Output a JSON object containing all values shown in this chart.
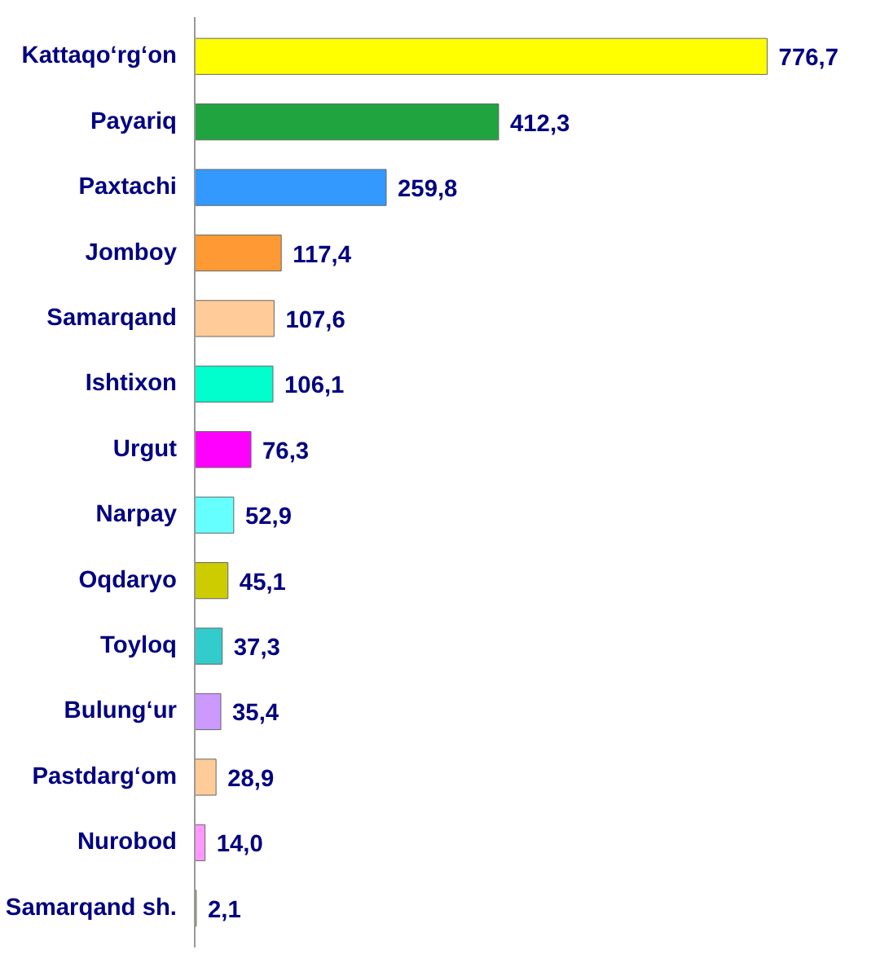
{
  "chart_data": {
    "type": "bar",
    "orientation": "horizontal",
    "categories": [
      "Kattaqo‘rg‘on",
      "Payariq",
      "Paxtachi",
      "Jomboy",
      "Samarqand",
      "Ishtixon",
      "Urgut",
      "Narpay",
      "Oqdaryo",
      "Toyloq",
      "Bulung‘ur",
      "Pastdarg‘om",
      "Nurobod",
      "Samarqand sh."
    ],
    "values": [
      776.7,
      412.3,
      259.8,
      117.4,
      107.6,
      106.1,
      76.3,
      52.9,
      45.1,
      37.3,
      35.4,
      28.9,
      14.0,
      2.1
    ],
    "value_labels": [
      "776,7",
      "412,3",
      "259,8",
      "117,4",
      "107,6",
      "106,1",
      "76,3",
      "52,9",
      "45,1",
      "37,3",
      "35,4",
      "28,9",
      "14,0",
      "2,1"
    ],
    "colors": [
      "#ffff00",
      "#1fa43f",
      "#3399ff",
      "#ff9933",
      "#ffcc99",
      "#00ffcc",
      "#ff00ff",
      "#66ffff",
      "#cccc00",
      "#33cccc",
      "#cc99ff",
      "#ffcc99",
      "#ff99ff",
      "#cccc66"
    ],
    "grid": false
  }
}
